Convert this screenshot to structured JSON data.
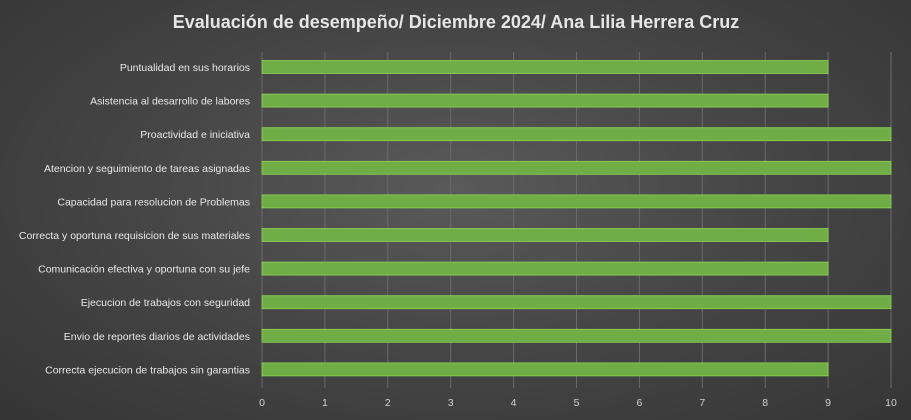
{
  "chart_data": {
    "type": "bar",
    "orientation": "horizontal",
    "title": "Evaluación de desempeño/ Diciembre 2024/ Ana Lilia Herrera Cruz",
    "categories": [
      "Puntualidad en sus horarios",
      "Asistencia al desarrollo de labores",
      "Proactividad e iniciativa",
      "Atencion y seguimiento de tareas asignadas",
      "Capacidad para resolucion de Problemas",
      "Correcta y oportuna requisicion de sus materiales",
      "Comunicación  efectiva y oportuna con su jefe",
      "Ejecucion de trabajos con seguridad",
      "Envio de reportes diarios de actividades",
      "Correcta ejecucion de trabajos sin garantias"
    ],
    "values": [
      9,
      9,
      10,
      10,
      10,
      9,
      9,
      10,
      10,
      9
    ],
    "xlim": [
      0,
      10
    ],
    "xticks": [
      "0",
      "1",
      "2",
      "3",
      "4",
      "5",
      "6",
      "7",
      "8",
      "9",
      "10"
    ],
    "grid": true,
    "legend": "none",
    "colors": {
      "bar": "#70ad47",
      "bar_edge": "#8ed455",
      "gridline": "#6a6a6a",
      "text": "#e6e6e6"
    }
  }
}
